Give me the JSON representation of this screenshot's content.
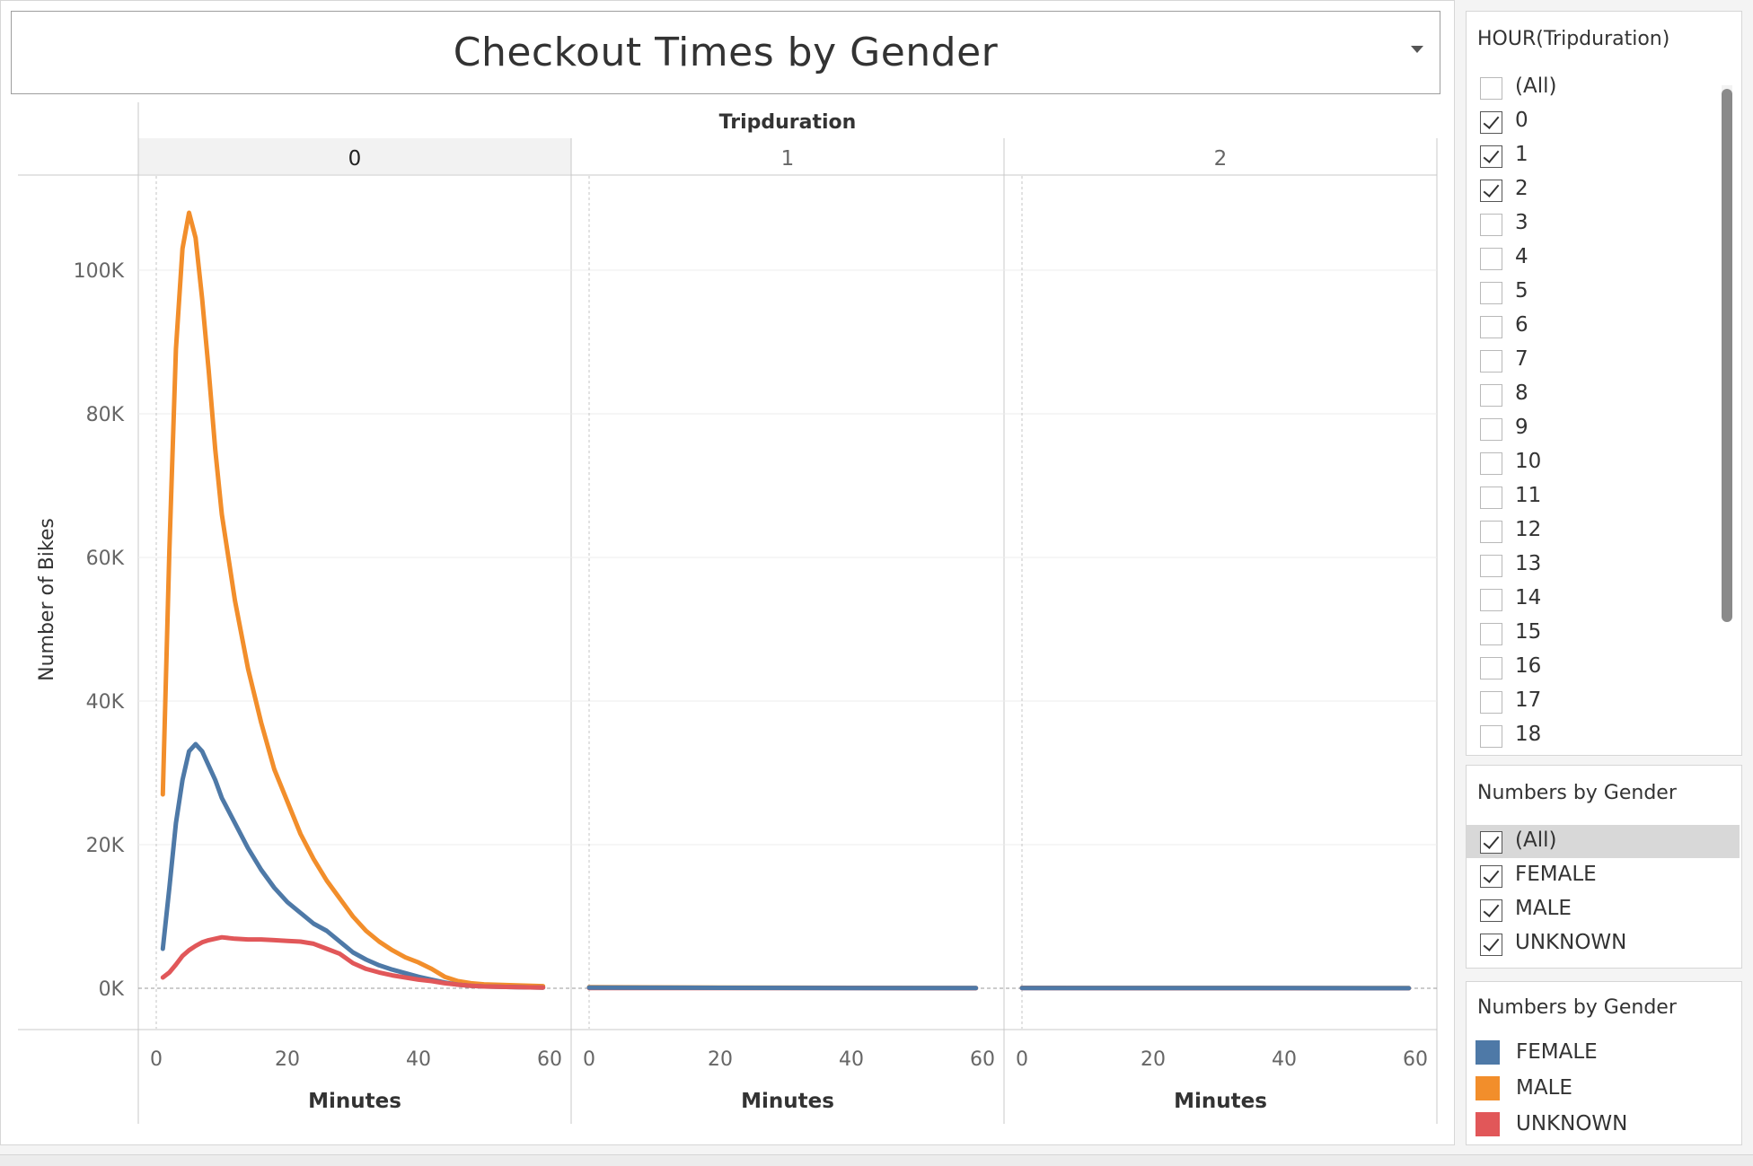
{
  "title": "Checkout Times by Gender",
  "header_label": "Tripduration",
  "colors": {
    "FEMALE": "#4e79a7",
    "MALE": "#f28e2b",
    "UNKNOWN": "#e15759"
  },
  "chart_data": {
    "type": "line",
    "title": "Checkout Times by Gender",
    "column_header": "Tripduration",
    "xlabel": "Minutes",
    "ylabel": "Number of Bikes",
    "xlim": [
      0,
      60
    ],
    "ylim": [
      0,
      110000
    ],
    "x_ticks": [
      0,
      20,
      40,
      60
    ],
    "y_ticks": [
      0,
      20000,
      40000,
      60000,
      80000,
      100000
    ],
    "y_tick_labels": [
      "0K",
      "20K",
      "40K",
      "60K",
      "80K",
      "100K"
    ],
    "grid": true,
    "panels": [
      {
        "label": "0",
        "series": [
          {
            "name": "MALE",
            "x": [
              1,
              2,
              3,
              4,
              5,
              6,
              7,
              8,
              9,
              10,
              12,
              14,
              16,
              18,
              20,
              22,
              24,
              26,
              28,
              30,
              32,
              34,
              36,
              38,
              40,
              42,
              44,
              46,
              48,
              50,
              55,
              59
            ],
            "y": [
              27000,
              61000,
              89000,
              103000,
              108000,
              104500,
              96000,
              86000,
              75000,
              66000,
              54000,
              44500,
              37000,
              30500,
              26000,
              21500,
              18000,
              15000,
              12500,
              10000,
              8000,
              6500,
              5300,
              4300,
              3600,
              2700,
              1600,
              1000,
              700,
              550,
              400,
              300
            ]
          },
          {
            "name": "FEMALE",
            "x": [
              1,
              2,
              3,
              4,
              5,
              6,
              7,
              8,
              9,
              10,
              12,
              14,
              16,
              18,
              20,
              22,
              24,
              26,
              28,
              30,
              32,
              34,
              36,
              38,
              40,
              42,
              44,
              46,
              48,
              50,
              55,
              59
            ],
            "y": [
              5500,
              14000,
              23000,
              29000,
              33000,
              34000,
              33000,
              31000,
              29000,
              26500,
              23000,
              19500,
              16500,
              14000,
              12000,
              10500,
              9000,
              8000,
              6500,
              5000,
              4000,
              3200,
              2600,
              2100,
              1600,
              1200,
              800,
              500,
              350,
              250,
              150,
              100
            ]
          },
          {
            "name": "UNKNOWN",
            "x": [
              1,
              2,
              3,
              4,
              5,
              6,
              7,
              8,
              9,
              10,
              12,
              14,
              16,
              18,
              20,
              22,
              24,
              26,
              28,
              30,
              32,
              34,
              36,
              38,
              40,
              42,
              44,
              46,
              48,
              50,
              55,
              59
            ],
            "y": [
              1500,
              2200,
              3300,
              4500,
              5300,
              5900,
              6400,
              6700,
              6900,
              7100,
              6900,
              6800,
              6800,
              6700,
              6600,
              6500,
              6200,
              5500,
              4800,
              3500,
              2700,
              2200,
              1800,
              1500,
              1200,
              1000,
              700,
              500,
              350,
              250,
              150,
              100
            ]
          }
        ]
      },
      {
        "label": "1",
        "series": [
          {
            "name": "MALE",
            "x": [
              0,
              20,
              40,
              59
            ],
            "y": [
              150,
              100,
              60,
              40
            ]
          },
          {
            "name": "UNKNOWN",
            "x": [
              0,
              20,
              40,
              59
            ],
            "y": [
              40,
              30,
              20,
              10
            ]
          },
          {
            "name": "FEMALE",
            "x": [
              0,
              20,
              40,
              59
            ],
            "y": [
              100,
              60,
              30,
              20
            ]
          }
        ]
      },
      {
        "label": "2",
        "series": [
          {
            "name": "MALE",
            "x": [
              0,
              20,
              40,
              59
            ],
            "y": [
              60,
              50,
              40,
              30
            ]
          },
          {
            "name": "UNKNOWN",
            "x": [
              0,
              20,
              40,
              59
            ],
            "y": [
              20,
              15,
              10,
              5
            ]
          },
          {
            "name": "FEMALE",
            "x": [
              0,
              20,
              40,
              59
            ],
            "y": [
              40,
              30,
              20,
              10
            ]
          }
        ]
      }
    ]
  },
  "filters": {
    "hour": {
      "title": "HOUR(Tripduration)",
      "items": [
        {
          "label": "(All)",
          "checked": false
        },
        {
          "label": "0",
          "checked": true
        },
        {
          "label": "1",
          "checked": true
        },
        {
          "label": "2",
          "checked": true
        },
        {
          "label": "3",
          "checked": false
        },
        {
          "label": "4",
          "checked": false
        },
        {
          "label": "5",
          "checked": false
        },
        {
          "label": "6",
          "checked": false
        },
        {
          "label": "7",
          "checked": false
        },
        {
          "label": "8",
          "checked": false
        },
        {
          "label": "9",
          "checked": false
        },
        {
          "label": "10",
          "checked": false
        },
        {
          "label": "11",
          "checked": false
        },
        {
          "label": "12",
          "checked": false
        },
        {
          "label": "13",
          "checked": false
        },
        {
          "label": "14",
          "checked": false
        },
        {
          "label": "15",
          "checked": false
        },
        {
          "label": "16",
          "checked": false
        },
        {
          "label": "17",
          "checked": false
        },
        {
          "label": "18",
          "checked": false
        }
      ]
    },
    "gender": {
      "title": "Numbers by Gender",
      "items": [
        {
          "label": "(All)",
          "checked": true,
          "highlighted": true
        },
        {
          "label": "FEMALE",
          "checked": true
        },
        {
          "label": "MALE",
          "checked": true
        },
        {
          "label": "UNKNOWN",
          "checked": true
        }
      ]
    }
  },
  "legend": {
    "title": "Numbers by Gender",
    "items": [
      {
        "label": "FEMALE",
        "color": "#4e79a7"
      },
      {
        "label": "MALE",
        "color": "#f28e2b"
      },
      {
        "label": "UNKNOWN",
        "color": "#e15759"
      }
    ]
  }
}
